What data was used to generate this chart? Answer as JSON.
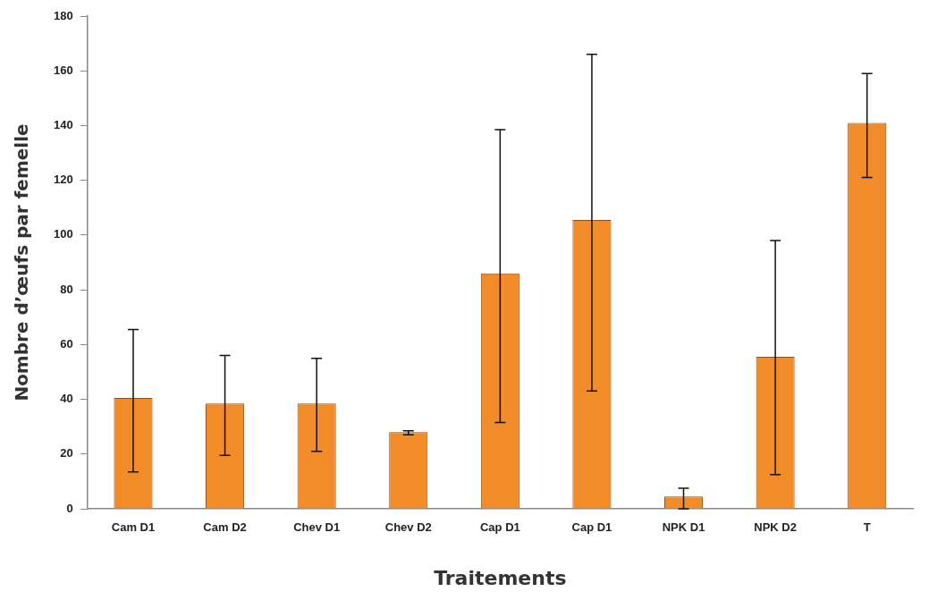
{
  "chart_data": {
    "type": "bar",
    "xlabel": "Traitements",
    "ylabel": "Nombre d’œufs par femelle",
    "categories": [
      "Cam D1",
      "Cam D2",
      "Chev D1",
      "Chev D2",
      "Cap D1",
      "Cap D1",
      "NPK D1",
      "NPK D2",
      "T"
    ],
    "values": [
      40.5,
      38.5,
      38.5,
      28,
      86,
      105.5,
      4.5,
      55.5,
      141
    ],
    "errors": [
      [
        13.5,
        65.5
      ],
      [
        19.5,
        56
      ],
      [
        21,
        55
      ],
      [
        27,
        28.5
      ],
      [
        31.5,
        138.5
      ],
      [
        43,
        166
      ],
      [
        0,
        7.5
      ],
      [
        12.5,
        98
      ],
      [
        121,
        159
      ]
    ],
    "color": "#f28c28",
    "ylim": [
      0,
      180
    ],
    "yticks": [
      0,
      20,
      40,
      60,
      80,
      100,
      120,
      140,
      160,
      180
    ],
    "grid": false,
    "legend": false
  }
}
